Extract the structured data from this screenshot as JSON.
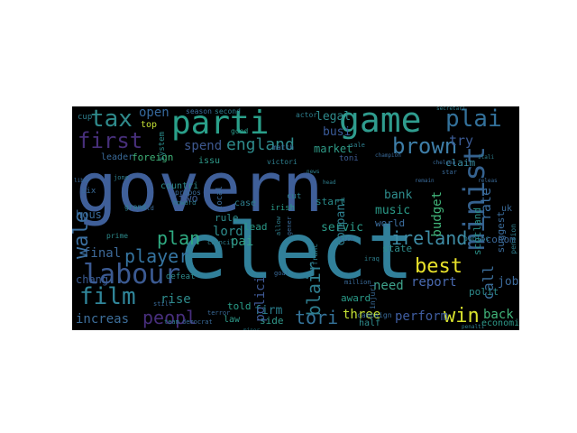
{
  "colors": {
    "figure_background": "#ffffff",
    "cloud_background": "#000000"
  },
  "words": [
    {
      "text": "govern",
      "color": "#3f5f99"
    },
    {
      "text": "elect",
      "color": "#31809a"
    },
    {
      "text": "game",
      "color": "#2f9c8e"
    },
    {
      "text": "parti",
      "color": "#2aa08a"
    },
    {
      "text": "labour",
      "color": "#3b5a92"
    },
    {
      "text": "tax",
      "color": "#2f8a8b"
    },
    {
      "text": "plai",
      "color": "#33719a"
    },
    {
      "text": "first",
      "color": "#472f7a"
    },
    {
      "text": "brown",
      "color": "#3e7ea8"
    },
    {
      "text": "england",
      "color": "#2e8b8c"
    },
    {
      "text": "minist",
      "color": "#35628f"
    },
    {
      "text": "film",
      "color": "#30869a"
    },
    {
      "text": "best",
      "color": "#e8e12a"
    },
    {
      "text": "win",
      "color": "#d8e22d"
    },
    {
      "text": "ireland",
      "color": "#3f8ea7"
    },
    {
      "text": "tori",
      "color": "#35739a"
    },
    {
      "text": "player",
      "color": "#3574a0"
    },
    {
      "text": "plan",
      "color": "#2fab82"
    },
    {
      "text": "blair",
      "color": "#2e7d8e"
    },
    {
      "text": "peopl",
      "color": "#472e7c"
    },
    {
      "text": "wale",
      "color": "#3b6fa0"
    },
    {
      "text": "market",
      "color": "#2f9a86"
    },
    {
      "text": "legal",
      "color": "#2e8a8b"
    },
    {
      "text": "busi",
      "color": "#3a5b9a"
    },
    {
      "text": "rate",
      "color": "#3b6ea0"
    },
    {
      "text": "try",
      "color": "#3b5b95"
    },
    {
      "text": "call",
      "color": "#3a6c98"
    },
    {
      "text": "back",
      "color": "#40b57a"
    },
    {
      "text": "report",
      "color": "#4a6ab0"
    },
    {
      "text": "perform",
      "color": "#3f5da0"
    },
    {
      "text": "three",
      "color": "#c4e034"
    },
    {
      "text": "need",
      "color": "#3ea38c"
    },
    {
      "text": "bank",
      "color": "#2e8c8c"
    },
    {
      "text": "music",
      "color": "#2a9a88"
    },
    {
      "text": "spend",
      "color": "#3e5990"
    },
    {
      "text": "open",
      "color": "#35689c"
    },
    {
      "text": "final",
      "color": "#3e6b9b"
    },
    {
      "text": "chang",
      "color": "#3a5c94"
    },
    {
      "text": "increas",
      "color": "#3d6e9a"
    },
    {
      "text": "rise",
      "color": "#2e8b8c"
    },
    {
      "text": "told",
      "color": "#2a9f8a"
    },
    {
      "text": "firm",
      "color": "#2b7f8e"
    },
    {
      "text": "side",
      "color": "#329a8c"
    },
    {
      "text": "lord",
      "color": "#2e8b8c"
    },
    {
      "text": "pai",
      "color": "#33a08a"
    },
    {
      "text": "servic",
      "color": "#2a9a88"
    },
    {
      "text": "budget",
      "color": "#41b47a"
    },
    {
      "text": "compani",
      "color": "#2e7f8e"
    },
    {
      "text": "polici",
      "color": "#3f5a96"
    },
    {
      "text": "job",
      "color": "#3c6a9b"
    },
    {
      "text": "polit",
      "color": "#2e8b8c"
    },
    {
      "text": "econom",
      "color": "#3a6596"
    },
    {
      "text": "economi",
      "color": "#2f9a8a"
    },
    {
      "text": "claim",
      "color": "#3b8fa4"
    },
    {
      "text": "suggest",
      "color": "#3a6a98"
    },
    {
      "text": "scotland",
      "color": "#2a9088"
    },
    {
      "text": "world",
      "color": "#3d6fa0"
    },
    {
      "text": "state",
      "color": "#2f8d8c"
    },
    {
      "text": "half",
      "color": "#2e8b8c"
    },
    {
      "text": "law",
      "color": "#2f9a8a"
    },
    {
      "text": "hous",
      "color": "#3a6b9a"
    },
    {
      "text": "two",
      "color": "#3e5c94"
    },
    {
      "text": "rule",
      "color": "#2e8b8c"
    },
    {
      "text": "start",
      "color": "#2a8a8a"
    },
    {
      "text": "case",
      "color": "#2e7f8e"
    },
    {
      "text": "lead",
      "color": "#2a9a88"
    },
    {
      "text": "foreign",
      "color": "#40b57a"
    },
    {
      "text": "issu",
      "color": "#2f9a8a"
    },
    {
      "text": "leader",
      "color": "#3a6b9a"
    },
    {
      "text": "countri",
      "color": "#2e8b8c"
    },
    {
      "text": "award",
      "color": "#2a9a88"
    },
    {
      "text": "toni",
      "color": "#3e5c94"
    },
    {
      "text": "irish",
      "color": "#2a9a88"
    },
    {
      "text": "uk",
      "color": "#3a6b9a"
    },
    {
      "text": "top",
      "color": "#c4e034"
    },
    {
      "text": "cup",
      "color": "#2e7f8e"
    },
    {
      "text": "six",
      "color": "#3a6b9a"
    },
    {
      "text": "defeat",
      "color": "#2e8b8c"
    },
    {
      "text": "local",
      "color": "#3a6b9a"
    },
    {
      "text": "cut",
      "color": "#2e7f8e"
    },
    {
      "text": "campaign",
      "color": "#3a6b9a"
    },
    {
      "text": "system",
      "color": "#2a8a8a"
    },
    {
      "text": "public",
      "color": "#2e7f8e"
    },
    {
      "text": "season",
      "color": "#3a6b9a"
    },
    {
      "text": "second",
      "color": "#2e7f8e"
    },
    {
      "text": "good",
      "color": "#2a9a88"
    },
    {
      "text": "victori",
      "color": "#2e7f8e"
    },
    {
      "text": "match",
      "color": "#3a6b9a"
    },
    {
      "text": "actor",
      "color": "#2e7f8e"
    },
    {
      "text": "propos",
      "color": "#3a6b9a"
    },
    {
      "text": "prime",
      "color": "#2e8b8c"
    },
    {
      "text": "grand",
      "color": "#2e7f8e"
    },
    {
      "text": "terror",
      "color": "#3a6b9a"
    },
    {
      "text": "howard",
      "color": "#2e7f8e"
    },
    {
      "text": "hold",
      "color": "#3a6b9a"
    },
    {
      "text": "sale",
      "color": "#2e7f8e"
    },
    {
      "text": "injuri",
      "color": "#3a6b9a"
    },
    {
      "text": "pension",
      "color": "#2e7f8e"
    },
    {
      "text": "million",
      "color": "#3a6b9a"
    },
    {
      "text": "council",
      "color": "#2e7f8e"
    },
    {
      "text": "kick",
      "color": "#3a6b9a"
    },
    {
      "text": "franc",
      "color": "#2e7f8e"
    },
    {
      "text": "gener",
      "color": "#3a6b9a"
    },
    {
      "text": "allow",
      "color": "#2e7f8e"
    },
    {
      "text": "goal",
      "color": "#3a6b9a"
    },
    {
      "text": "team",
      "color": "#2e7f8e"
    },
    {
      "text": "democrat",
      "color": "#3a6b9a"
    },
    {
      "text": "iraq",
      "color": "#2e7f8e"
    },
    {
      "text": "still",
      "color": "#3a6b9a"
    },
    {
      "text": "head",
      "color": "#2e7f8e"
    },
    {
      "text": "liber",
      "color": "#3a6b9a"
    },
    {
      "text": "news",
      "color": "#2e7f8e"
    },
    {
      "text": "champion",
      "color": "#3a6b9a"
    },
    {
      "text": "secretari",
      "color": "#2e7f8e"
    },
    {
      "text": "chelsea",
      "color": "#3a6b9a"
    },
    {
      "text": "itali",
      "color": "#2e7f8e"
    },
    {
      "text": "star",
      "color": "#3a6b9a"
    },
    {
      "text": "penalti",
      "color": "#2e7f8e"
    },
    {
      "text": "remain",
      "color": "#3a6b9a"
    },
    {
      "text": "minor",
      "color": "#2e7f8e"
    },
    {
      "text": "releas",
      "color": "#3a6b9a"
    },
    {
      "text": "jone",
      "color": "#2e7f8e"
    }
  ]
}
